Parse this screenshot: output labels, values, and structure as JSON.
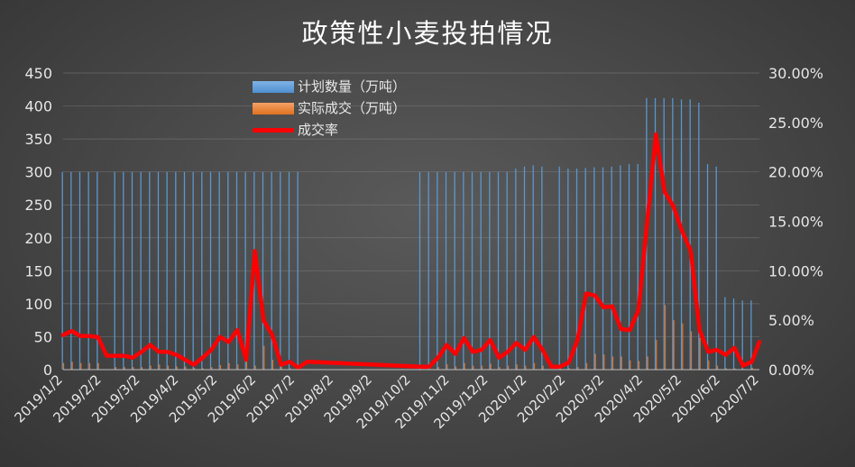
{
  "chart_data": {
    "type": "bar+line",
    "title": "政策性小麦投拍情况",
    "legend": [
      {
        "name": "计划数量（万吨）",
        "kind": "bar",
        "color": "#5b9bd5"
      },
      {
        "name": "实际成交（万吨）",
        "kind": "bar",
        "color": "#ed7d31"
      },
      {
        "name": "成交率",
        "kind": "line",
        "color": "#ff0000"
      }
    ],
    "legend_position": "top-left",
    "y_left": {
      "ylim": [
        0,
        450
      ],
      "ticks": [
        "0",
        "50",
        "100",
        "150",
        "200",
        "250",
        "300",
        "350",
        "400",
        "450"
      ]
    },
    "y_right": {
      "ylim": [
        0,
        0.3
      ],
      "ticks": [
        "0.00%",
        "5.00%",
        "10.00%",
        "15.00%",
        "20.00%",
        "25.00%",
        "30.00%"
      ]
    },
    "x_ticks": [
      "2019/1/2",
      "2019/2/2",
      "2019/3/2",
      "2019/4/2",
      "2019/5/2",
      "2019/6/2",
      "2019/7/2",
      "2019/8/2",
      "2019/9/2",
      "2019/10/2",
      "2019/11/2",
      "2019/12/2",
      "2020/1/2",
      "2020/2/2",
      "2020/3/2",
      "2020/4/2",
      "2020/5/2",
      "2020/6/2",
      "2020/7/2"
    ],
    "x_range": [
      "2019-01-02",
      "2020-07-14"
    ],
    "grid": true,
    "series": [
      {
        "name": "计划数量（万吨）",
        "axis": "left",
        "type": "bar",
        "color": "#5b9bd5",
        "points": [
          [
            "2019-01-02",
            300
          ],
          [
            "2019-01-09",
            300
          ],
          [
            "2019-01-16",
            300
          ],
          [
            "2019-01-23",
            300
          ],
          [
            "2019-01-30",
            300
          ],
          [
            "2019-02-13",
            300
          ],
          [
            "2019-02-20",
            300
          ],
          [
            "2019-02-27",
            300
          ],
          [
            "2019-03-06",
            300
          ],
          [
            "2019-03-13",
            300
          ],
          [
            "2019-03-20",
            300
          ],
          [
            "2019-03-27",
            300
          ],
          [
            "2019-04-03",
            300
          ],
          [
            "2019-04-10",
            300
          ],
          [
            "2019-04-17",
            300
          ],
          [
            "2019-04-24",
            300
          ],
          [
            "2019-05-01",
            300
          ],
          [
            "2019-05-08",
            300
          ],
          [
            "2019-05-15",
            300
          ],
          [
            "2019-05-22",
            300
          ],
          [
            "2019-05-29",
            300
          ],
          [
            "2019-06-05",
            300
          ],
          [
            "2019-06-12",
            300
          ],
          [
            "2019-06-19",
            300
          ],
          [
            "2019-06-26",
            300
          ],
          [
            "2019-07-03",
            300
          ],
          [
            "2019-07-10",
            300
          ],
          [
            "2019-10-16",
            300
          ],
          [
            "2019-10-23",
            300
          ],
          [
            "2019-10-30",
            300
          ],
          [
            "2019-11-06",
            300
          ],
          [
            "2019-11-13",
            300
          ],
          [
            "2019-11-20",
            300
          ],
          [
            "2019-11-27",
            300
          ],
          [
            "2019-12-04",
            300
          ],
          [
            "2019-12-11",
            300
          ],
          [
            "2019-12-18",
            300
          ],
          [
            "2019-12-25",
            300
          ],
          [
            "2020-01-01",
            305
          ],
          [
            "2020-01-08",
            308
          ],
          [
            "2020-01-15",
            310
          ],
          [
            "2020-01-22",
            308
          ],
          [
            "2020-02-05",
            308
          ],
          [
            "2020-02-12",
            305
          ],
          [
            "2020-02-19",
            305
          ],
          [
            "2020-02-26",
            306
          ],
          [
            "2020-03-04",
            307
          ],
          [
            "2020-03-11",
            307
          ],
          [
            "2020-03-18",
            308
          ],
          [
            "2020-03-25",
            310
          ],
          [
            "2020-04-01",
            312
          ],
          [
            "2020-04-08",
            312
          ],
          [
            "2020-04-15",
            412
          ],
          [
            "2020-04-22",
            412
          ],
          [
            "2020-04-29",
            412
          ],
          [
            "2020-05-06",
            412
          ],
          [
            "2020-05-13",
            410
          ],
          [
            "2020-05-20",
            410
          ],
          [
            "2020-05-27",
            405
          ],
          [
            "2020-06-03",
            312
          ],
          [
            "2020-06-10",
            308
          ],
          [
            "2020-06-17",
            110
          ],
          [
            "2020-06-24",
            108
          ],
          [
            "2020-07-01",
            105
          ],
          [
            "2020-07-08",
            105
          ]
        ]
      },
      {
        "name": "实际成交（万吨）",
        "axis": "left",
        "type": "bar",
        "color": "#ed7d31",
        "points": [
          [
            "2019-01-02",
            10
          ],
          [
            "2019-01-09",
            12
          ],
          [
            "2019-01-16",
            10
          ],
          [
            "2019-01-23",
            10
          ],
          [
            "2019-01-30",
            10
          ],
          [
            "2019-02-13",
            4
          ],
          [
            "2019-02-20",
            4
          ],
          [
            "2019-02-27",
            4
          ],
          [
            "2019-03-06",
            4
          ],
          [
            "2019-03-13",
            6
          ],
          [
            "2019-03-20",
            8
          ],
          [
            "2019-03-27",
            6
          ],
          [
            "2019-04-03",
            5
          ],
          [
            "2019-04-10",
            5
          ],
          [
            "2019-04-17",
            3
          ],
          [
            "2019-04-24",
            2
          ],
          [
            "2019-05-01",
            4
          ],
          [
            "2019-05-08",
            7
          ],
          [
            "2019-05-15",
            10
          ],
          [
            "2019-05-22",
            8
          ],
          [
            "2019-05-29",
            12
          ],
          [
            "2019-06-05",
            6
          ],
          [
            "2019-06-12",
            36
          ],
          [
            "2019-06-19",
            15
          ],
          [
            "2019-06-26",
            8
          ],
          [
            "2019-07-03",
            2
          ],
          [
            "2019-07-10",
            2
          ],
          [
            "2019-10-16",
            1
          ],
          [
            "2019-10-23",
            1
          ],
          [
            "2019-10-30",
            4
          ],
          [
            "2019-11-06",
            8
          ],
          [
            "2019-11-13",
            5
          ],
          [
            "2019-11-20",
            10
          ],
          [
            "2019-11-27",
            6
          ],
          [
            "2019-12-04",
            6
          ],
          [
            "2019-12-11",
            9
          ],
          [
            "2019-12-18",
            4
          ],
          [
            "2019-12-25",
            6
          ],
          [
            "2020-01-01",
            8
          ],
          [
            "2020-01-08",
            6
          ],
          [
            "2020-01-15",
            10
          ],
          [
            "2020-01-22",
            6
          ],
          [
            "2020-02-05",
            2
          ],
          [
            "2020-02-12",
            2
          ],
          [
            "2020-02-19",
            4
          ],
          [
            "2020-02-26",
            10
          ],
          [
            "2020-03-04",
            24
          ],
          [
            "2020-03-11",
            23
          ],
          [
            "2020-03-18",
            20
          ],
          [
            "2020-03-25",
            20
          ],
          [
            "2020-04-01",
            14
          ],
          [
            "2020-04-08",
            13
          ],
          [
            "2020-04-15",
            20
          ],
          [
            "2020-04-22",
            45
          ],
          [
            "2020-04-29",
            98
          ],
          [
            "2020-05-06",
            75
          ],
          [
            "2020-05-13",
            70
          ],
          [
            "2020-05-20",
            58
          ],
          [
            "2020-05-27",
            48
          ],
          [
            "2020-06-03",
            14
          ],
          [
            "2020-06-10",
            6
          ],
          [
            "2020-06-17",
            2
          ],
          [
            "2020-06-24",
            2
          ],
          [
            "2020-07-01",
            1
          ],
          [
            "2020-07-08",
            3
          ]
        ]
      },
      {
        "name": "成交率",
        "axis": "right",
        "type": "line",
        "color": "#ff0000",
        "points": [
          [
            "2019-01-02",
            0.035
          ],
          [
            "2019-01-09",
            0.039
          ],
          [
            "2019-01-16",
            0.034
          ],
          [
            "2019-01-23",
            0.034
          ],
          [
            "2019-01-30",
            0.033
          ],
          [
            "2019-02-06",
            0.014
          ],
          [
            "2019-02-13",
            0.014
          ],
          [
            "2019-02-20",
            0.014
          ],
          [
            "2019-02-27",
            0.012
          ],
          [
            "2019-03-06",
            0.018
          ],
          [
            "2019-03-13",
            0.025
          ],
          [
            "2019-03-20",
            0.018
          ],
          [
            "2019-03-27",
            0.018
          ],
          [
            "2019-04-03",
            0.015
          ],
          [
            "2019-04-10",
            0.01
          ],
          [
            "2019-04-17",
            0.005
          ],
          [
            "2019-04-24",
            0.012
          ],
          [
            "2019-05-01",
            0.02
          ],
          [
            "2019-05-08",
            0.033
          ],
          [
            "2019-05-15",
            0.028
          ],
          [
            "2019-05-22",
            0.04
          ],
          [
            "2019-05-29",
            0.01
          ],
          [
            "2019-06-05",
            0.12
          ],
          [
            "2019-06-12",
            0.05
          ],
          [
            "2019-06-19",
            0.035
          ],
          [
            "2019-06-26",
            0.005
          ],
          [
            "2019-07-03",
            0.008
          ],
          [
            "2019-07-10",
            0.002
          ],
          [
            "2019-07-17",
            0.008
          ],
          [
            "2019-10-16",
            0.003
          ],
          [
            "2019-10-23",
            0.003
          ],
          [
            "2019-10-30",
            0.012
          ],
          [
            "2019-11-06",
            0.025
          ],
          [
            "2019-11-13",
            0.016
          ],
          [
            "2019-11-20",
            0.032
          ],
          [
            "2019-11-27",
            0.018
          ],
          [
            "2019-12-04",
            0.02
          ],
          [
            "2019-12-11",
            0.03
          ],
          [
            "2019-12-18",
            0.012
          ],
          [
            "2019-12-25",
            0.018
          ],
          [
            "2020-01-01",
            0.027
          ],
          [
            "2020-01-08",
            0.02
          ],
          [
            "2020-01-15",
            0.033
          ],
          [
            "2020-01-22",
            0.02
          ],
          [
            "2020-01-29",
            0.003
          ],
          [
            "2020-02-05",
            0.003
          ],
          [
            "2020-02-12",
            0.007
          ],
          [
            "2020-02-19",
            0.03
          ],
          [
            "2020-02-26",
            0.077
          ],
          [
            "2020-03-04",
            0.075
          ],
          [
            "2020-03-11",
            0.063
          ],
          [
            "2020-03-18",
            0.064
          ],
          [
            "2020-03-25",
            0.041
          ],
          [
            "2020-04-01",
            0.04
          ],
          [
            "2020-04-08",
            0.06
          ],
          [
            "2020-04-15",
            0.15
          ],
          [
            "2020-04-22",
            0.238
          ],
          [
            "2020-04-29",
            0.18
          ],
          [
            "2020-05-06",
            0.165
          ],
          [
            "2020-05-13",
            0.14
          ],
          [
            "2020-05-20",
            0.12
          ],
          [
            "2020-05-27",
            0.04
          ],
          [
            "2020-06-03",
            0.018
          ],
          [
            "2020-06-10",
            0.02
          ],
          [
            "2020-06-17",
            0.015
          ],
          [
            "2020-06-24",
            0.022
          ],
          [
            "2020-07-01",
            0.004
          ],
          [
            "2020-07-08",
            0.008
          ],
          [
            "2020-07-14",
            0.028
          ]
        ]
      }
    ]
  }
}
